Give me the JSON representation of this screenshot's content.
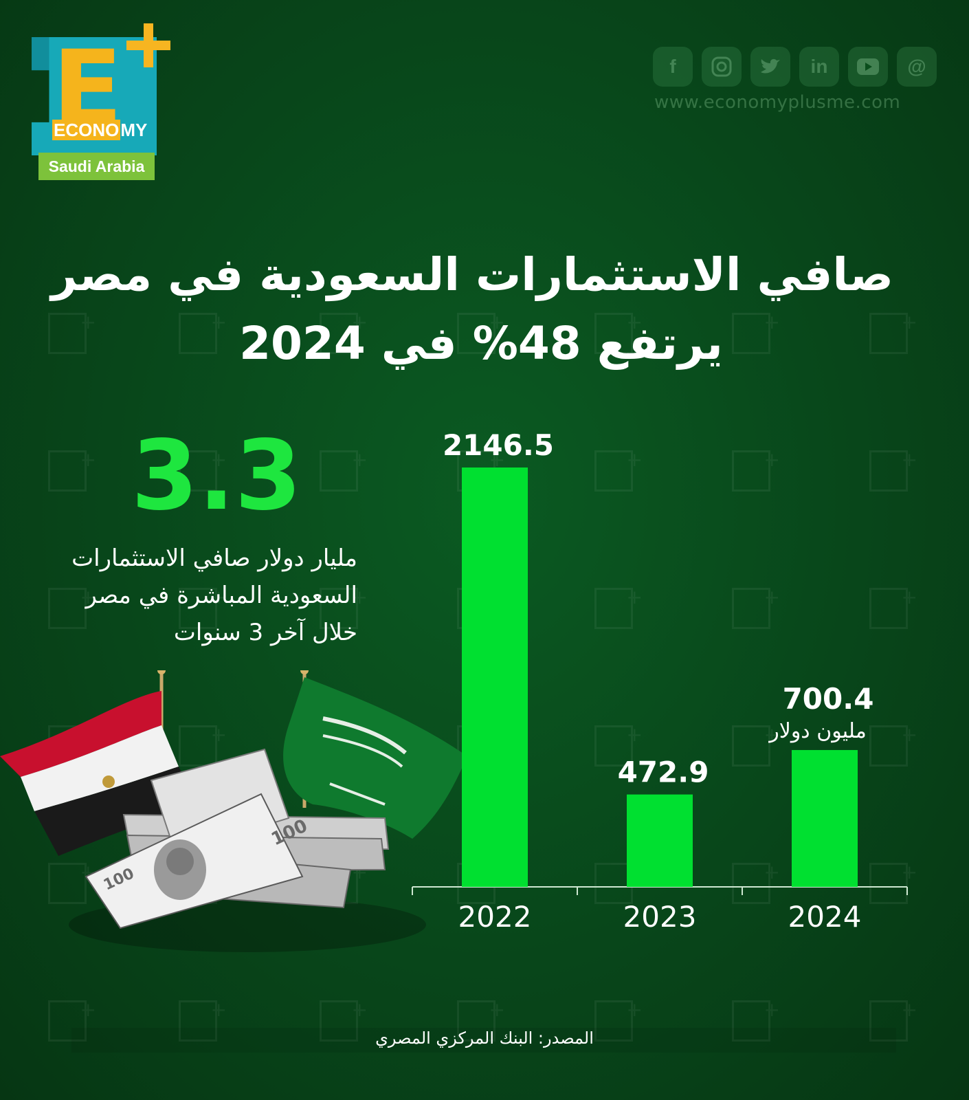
{
  "logo": {
    "letter": "E",
    "brand": "ECONOMY",
    "brand_highlight": "ECONO",
    "brand_rest": "MY",
    "region": "Saudi Arabia"
  },
  "social": {
    "icons": [
      "facebook-icon",
      "instagram-icon",
      "twitter-icon",
      "linkedin-icon",
      "youtube-icon",
      "threads-icon"
    ],
    "website": "www.economyplusme.com"
  },
  "title": {
    "line1": "صافي الاستثمارات السعودية في مصر",
    "line2": "يرتفع 48% في 2024"
  },
  "highlight": {
    "value": "3.3",
    "description_line1": "مليار دولار صافي الاستثمارات",
    "description_line2": "السعودية المباشرة في مصر",
    "description_line3": "خلال آخر 3 سنوات"
  },
  "chart_data": {
    "type": "bar",
    "categories": [
      "2022",
      "2023",
      "2024"
    ],
    "values": [
      2146.5,
      472.9,
      700.4
    ],
    "value_labels": [
      "2146.5",
      "472.9",
      "700.4"
    ],
    "unit_label": "مليون دولار",
    "ylim": [
      0,
      2146.5
    ],
    "bar_color": "#00e030"
  },
  "source": "المصدر: البنك المركزي المصري",
  "colors": {
    "background": "#08461a",
    "accent_green": "#1ee63f",
    "logo_teal": "#17a9b8",
    "logo_yellow": "#f5b41c",
    "logo_lime": "#7dc23b"
  }
}
